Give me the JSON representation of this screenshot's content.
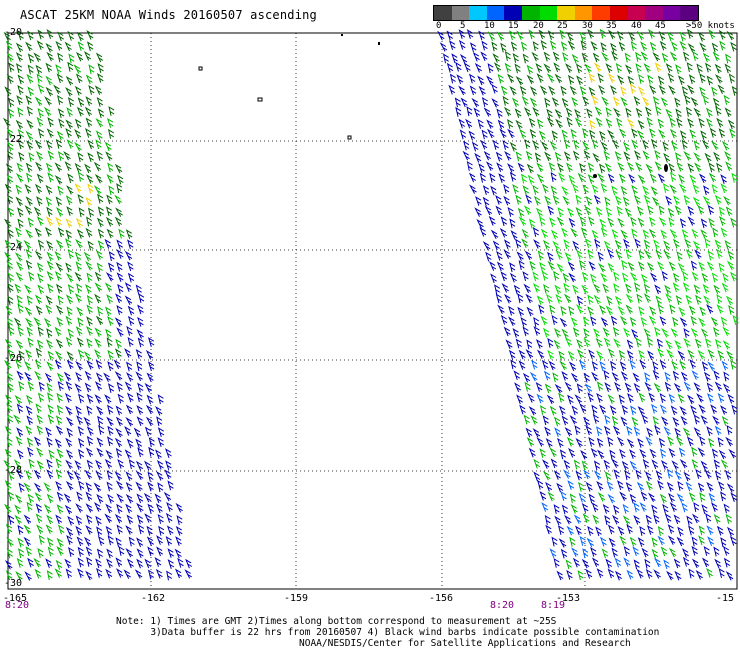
{
  "title": "ASCAT 25KM NOAA Winds 20160507 ascending",
  "legend": {
    "labels": [
      "0",
      "5",
      "10",
      "15",
      "20",
      "25",
      "30",
      "35",
      "40",
      "45",
      ">50 knots"
    ],
    "colors": [
      "#404040",
      "#808080",
      "#00c8ff",
      "#0064ff",
      "#0000b4",
      "#00b400",
      "#00dc00",
      "#f0d000",
      "#ff9600",
      "#ff3c00",
      "#dc0000",
      "#c80050",
      "#a00080",
      "#7800a0",
      "#5a0080"
    ]
  },
  "map": {
    "lat_labels": [
      "-20",
      "-22",
      "-24",
      "-26",
      "-28",
      "-30"
    ],
    "lon_labels": [
      "-165",
      "-162",
      "-159",
      "-156",
      "-153",
      "-15"
    ],
    "pass_times": [
      "8:20",
      "8:20",
      "8:19"
    ],
    "barb_colors": {
      "dark_green": "#006400",
      "green": "#00b400",
      "light_green": "#00dc00",
      "blue": "#0000b4",
      "mid_blue": "#0064ff",
      "yellow": "#f0d000",
      "black": "#000000"
    }
  },
  "notes": {
    "line1": "Note: 1) Times are GMT 2)Times along bottom correspond to measurement at ~25S",
    "line2": "      3)Data buffer is 22 hrs from 20160507 4) Black wind barbs indicate possible contamination",
    "line3": "                                NOAA/NESDIS/Center for Satellite Applications and Research"
  }
}
